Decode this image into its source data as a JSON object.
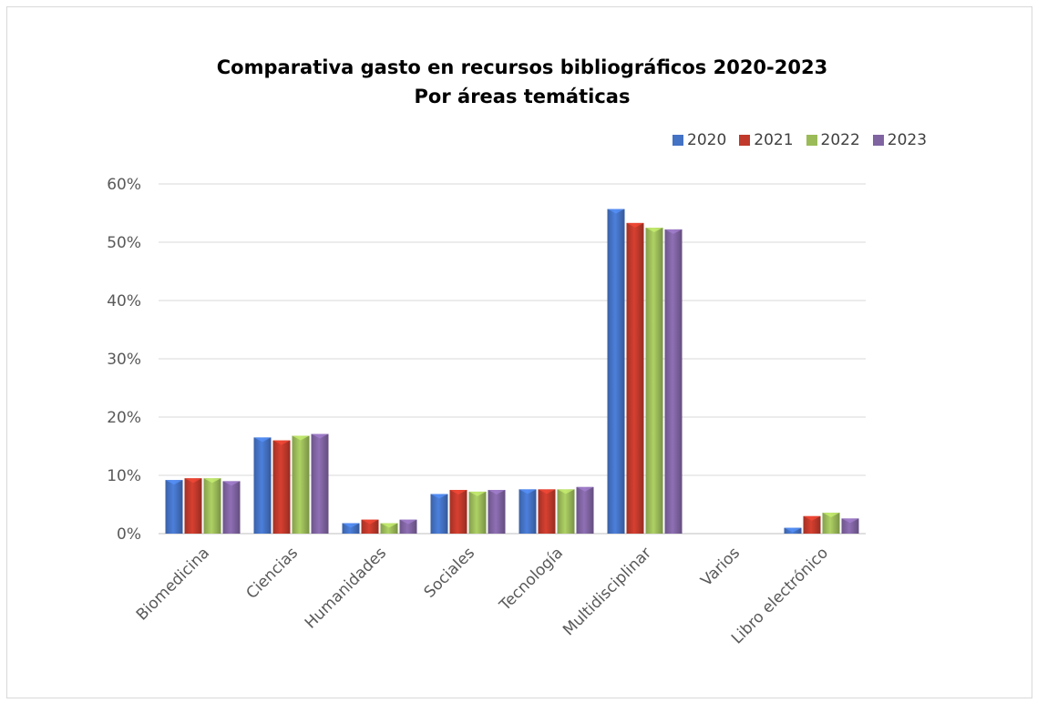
{
  "chart_data": {
    "type": "bar",
    "title": "Comparativa gasto en recursos bibliográficos 2020-2023",
    "subtitle": "Por áreas temáticas",
    "categories": [
      "Biomedicina",
      "Ciencias",
      "Humanidades",
      "Sociales",
      "Tecnología",
      "Multidisciplinar",
      "Varios",
      "Libro electrónico"
    ],
    "series": [
      {
        "name": "2020",
        "color": "#4472c4",
        "values": [
          9.2,
          16.5,
          1.8,
          6.8,
          7.6,
          55.7,
          0,
          1.0
        ]
      },
      {
        "name": "2021",
        "color": "#c0392b",
        "values": [
          9.5,
          16.0,
          2.4,
          7.5,
          7.6,
          53.3,
          0,
          3.0
        ]
      },
      {
        "name": "2022",
        "color": "#9bbb59",
        "values": [
          9.5,
          16.8,
          1.8,
          7.2,
          7.6,
          52.5,
          0,
          3.6
        ]
      },
      {
        "name": "2023",
        "color": "#8064a2",
        "values": [
          9.0,
          17.1,
          2.4,
          7.5,
          8.0,
          52.2,
          0,
          2.6
        ]
      }
    ],
    "yticks": [
      "0%",
      "10%",
      "20%",
      "30%",
      "40%",
      "50%",
      "60%"
    ],
    "ylim": [
      0,
      60
    ],
    "xlabel": "",
    "ylabel": "",
    "grid": true,
    "legend": "top-right"
  }
}
